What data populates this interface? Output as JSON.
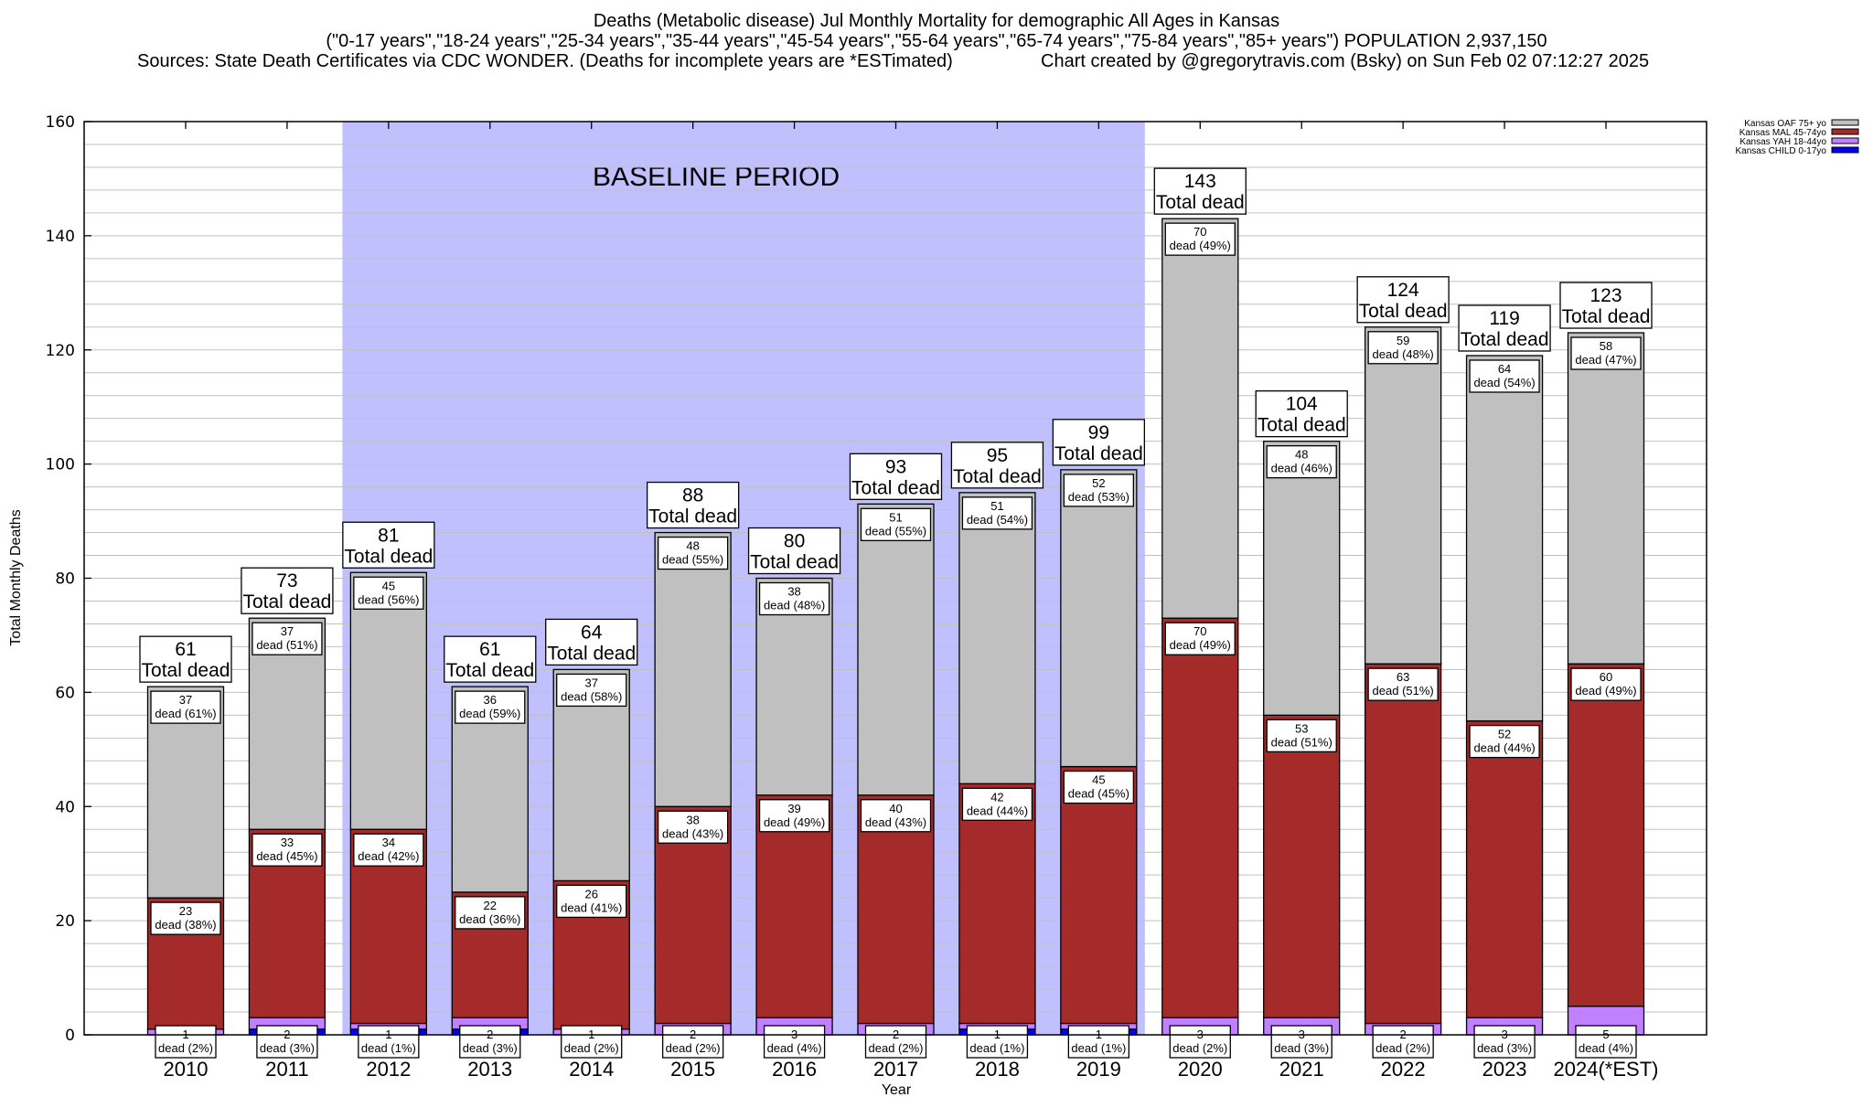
{
  "header": {
    "title_line1": "Deaths (Metabolic disease) Jul Monthly Mortality for demographic All Ages in Kansas",
    "title_line2": "(\"0-17 years\",\"18-24 years\",\"25-34 years\",\"35-44 years\",\"45-54 years\",\"55-64 years\",\"65-74 years\",\"75-84 years\",\"85+ years\") POPULATION 2,937,150",
    "sources": "Sources: State Death Certificates via CDC WONDER. (Deaths for incomplete years are *ESTimated)",
    "credit": "Chart created by @gregorytravis.com (Bsky) on Sun Feb 02 07:12:27 2025"
  },
  "chart_data": {
    "type": "bar",
    "stacked": true,
    "title": "Deaths (Metabolic disease) Jul Monthly Mortality for demographic All Ages in Kansas",
    "xlabel": "Year",
    "ylabel": "Total Monthly Deaths",
    "ylim": [
      0,
      160
    ],
    "yticks": [
      0,
      20,
      40,
      60,
      80,
      100,
      120,
      140,
      160
    ],
    "minor_grid_step": 4,
    "grid": true,
    "legend_position": "top-right",
    "categories": [
      "2010",
      "2011",
      "2012",
      "2013",
      "2014",
      "2015",
      "2016",
      "2017",
      "2018",
      "2019",
      "2020",
      "2021",
      "2022",
      "2023",
      "2024(*EST)"
    ],
    "series": [
      {
        "name": "Kansas CHILD 0-17yo",
        "color": "#0000ff",
        "values": [
          0,
          1,
          1,
          1,
          0,
          0,
          0,
          0,
          1,
          1,
          0,
          0,
          0,
          0,
          0
        ]
      },
      {
        "name": "Kansas YAH 18-44yo",
        "color": "#c080ff",
        "values": [
          1,
          2,
          1,
          2,
          1,
          2,
          3,
          2,
          1,
          1,
          3,
          3,
          2,
          3,
          5
        ],
        "pct": [
          "2%",
          "3%",
          "1%",
          "3%",
          "2%",
          "2%",
          "4%",
          "2%",
          "1%",
          "1%",
          "2%",
          "3%",
          "2%",
          "3%",
          "4%"
        ]
      },
      {
        "name": "Kansas MAL 45-74yo",
        "color": "#a52a2a",
        "values": [
          23,
          33,
          34,
          22,
          26,
          38,
          39,
          40,
          42,
          45,
          70,
          53,
          63,
          52,
          60
        ],
        "pct": [
          "38%",
          "45%",
          "42%",
          "36%",
          "41%",
          "43%",
          "49%",
          "43%",
          "44%",
          "45%",
          "49%",
          "51%",
          "51%",
          "44%",
          "49%"
        ]
      },
      {
        "name": "Kansas OAF 75+ yo",
        "color": "#c0c0c0",
        "values": [
          37,
          37,
          45,
          36,
          37,
          48,
          38,
          51,
          51,
          52,
          70,
          48,
          59,
          64,
          58
        ],
        "pct": [
          "61%",
          "51%",
          "56%",
          "59%",
          "58%",
          "55%",
          "48%",
          "55%",
          "54%",
          "53%",
          "49%",
          "46%",
          "48%",
          "54%",
          "47%"
        ]
      }
    ],
    "totals": [
      61,
      73,
      81,
      61,
      64,
      88,
      80,
      93,
      95,
      99,
      143,
      104,
      124,
      119,
      123
    ],
    "total_label_suffix": "Total dead",
    "segment_label_word": "dead",
    "annotation": {
      "text": "BASELINE PERIOD",
      "from_category": "2012",
      "to_category": "2019",
      "color": "#c0c0ff"
    }
  }
}
